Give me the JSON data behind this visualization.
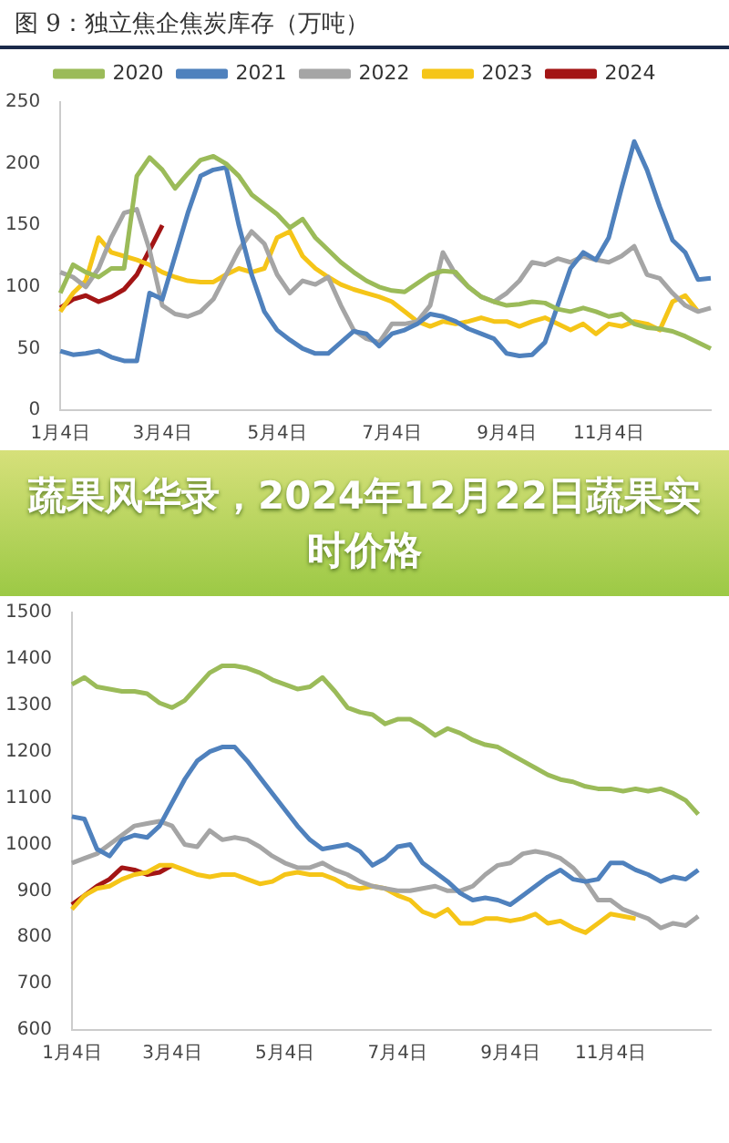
{
  "chart_data": [
    {
      "type": "line",
      "title": "图 9：独立焦企焦炭库存（万吨）",
      "categories": [
        "1月4日",
        null,
        null,
        null,
        null,
        null,
        null,
        null,
        "3月4日",
        null,
        null,
        null,
        null,
        null,
        null,
        null,
        null,
        "5月4日",
        null,
        null,
        null,
        null,
        null,
        null,
        null,
        null,
        "7月4日",
        null,
        null,
        null,
        null,
        null,
        null,
        null,
        null,
        "9月4日",
        null,
        null,
        null,
        null,
        null,
        null,
        null,
        "11月4日",
        null,
        null,
        null,
        null,
        null,
        null,
        null,
        null
      ],
      "series": [
        {
          "name": "2020",
          "color": "#9bbb59",
          "values": [
            95,
            118,
            112,
            108,
            115,
            115,
            190,
            205,
            195,
            180,
            192,
            203,
            206,
            200,
            190,
            175,
            167,
            159,
            148,
            155,
            140,
            130,
            120,
            112,
            105,
            100,
            97,
            96,
            103,
            110,
            113,
            112,
            100,
            92,
            88,
            85,
            86,
            88,
            87,
            82,
            80,
            83,
            80,
            76,
            78,
            70,
            67,
            66,
            64,
            60,
            55,
            50
          ]
        },
        {
          "name": "2021",
          "color": "#4f81bd",
          "values": [
            48,
            45,
            46,
            48,
            43,
            40,
            40,
            95,
            90,
            125,
            160,
            190,
            195,
            197,
            150,
            110,
            80,
            65,
            57,
            50,
            46,
            46,
            55,
            64,
            62,
            52,
            62,
            65,
            70,
            78,
            76,
            72,
            66,
            62,
            58,
            46,
            44,
            45,
            55,
            85,
            115,
            128,
            122,
            140,
            180,
            218,
            195,
            165,
            138,
            128,
            106,
            107
          ]
        },
        {
          "name": "2022",
          "color": "#a5a5a5",
          "values": [
            112,
            108,
            100,
            115,
            140,
            160,
            163,
            130,
            85,
            78,
            76,
            80,
            90,
            110,
            130,
            145,
            135,
            110,
            95,
            105,
            102,
            108,
            85,
            65,
            58,
            55,
            70,
            70,
            72,
            85,
            128,
            110,
            100,
            92,
            88,
            95,
            105,
            120,
            118,
            123,
            120,
            125,
            122,
            120,
            125,
            133,
            110,
            107,
            95,
            85,
            80,
            83
          ]
        },
        {
          "name": "2023",
          "color": "#f5c518",
          "values": [
            80,
            95,
            105,
            140,
            128,
            125,
            122,
            118,
            112,
            108,
            105,
            104,
            104,
            110,
            115,
            112,
            115,
            140,
            145,
            125,
            115,
            108,
            102,
            98,
            95,
            92,
            88,
            80,
            72,
            68,
            72,
            70,
            72,
            75,
            72,
            72,
            68,
            72,
            75,
            70,
            65,
            70,
            62,
            70,
            68,
            72,
            70,
            65,
            88,
            93,
            80,
            null
          ]
        },
        {
          "name": "2024",
          "color": "#a31515",
          "values": [
            83,
            90,
            93,
            88,
            92,
            98,
            110,
            130,
            150,
            null,
            null,
            null,
            null,
            null,
            null,
            null,
            null,
            null,
            null,
            null,
            null,
            null,
            null,
            null,
            null,
            null,
            null,
            null,
            null,
            null,
            null,
            null,
            null,
            null,
            null,
            null,
            null,
            null,
            null,
            null,
            null,
            null,
            null,
            null,
            null,
            null,
            null,
            null,
            null,
            null,
            null,
            null
          ]
        }
      ],
      "ylim": [
        0,
        250
      ],
      "yticks": [
        0,
        50,
        100,
        150,
        200,
        250
      ],
      "legend": "top",
      "marker": "none"
    },
    {
      "type": "other",
      "title": "蔬果风华录，2024年12月22日蔬果实时价格"
    },
    {
      "type": "line",
      "categories": [
        "1月4日",
        null,
        null,
        null,
        null,
        null,
        null,
        null,
        "3月4日",
        null,
        null,
        null,
        null,
        null,
        null,
        null,
        null,
        "5月4日",
        null,
        null,
        null,
        null,
        null,
        null,
        null,
        null,
        "7月4日",
        null,
        null,
        null,
        null,
        null,
        null,
        null,
        null,
        "9月4日",
        null,
        null,
        null,
        null,
        null,
        null,
        null,
        "11月4日",
        null,
        null,
        null,
        null,
        null,
        null,
        null,
        null
      ],
      "series": [
        {
          "color": "#9bbb59",
          "values": [
            1345,
            1360,
            1340,
            1335,
            1330,
            1330,
            1325,
            1305,
            1295,
            1310,
            1340,
            1370,
            1385,
            1385,
            1380,
            1370,
            1355,
            1345,
            1335,
            1340,
            1360,
            1330,
            1295,
            1285,
            1280,
            1260,
            1270,
            1270,
            1255,
            1235,
            1250,
            1240,
            1225,
            1215,
            1210,
            1195,
            1180,
            1165,
            1150,
            1140,
            1135,
            1125,
            1120,
            1120,
            1115,
            1120,
            1115,
            1120,
            1110,
            1095,
            1065,
            null
          ]
        },
        {
          "color": "#4f81bd",
          "values": [
            1060,
            1055,
            990,
            975,
            1010,
            1020,
            1015,
            1040,
            1090,
            1140,
            1180,
            1200,
            1210,
            1210,
            1180,
            1145,
            1110,
            1075,
            1040,
            1010,
            990,
            995,
            1000,
            985,
            955,
            970,
            995,
            1000,
            960,
            940,
            920,
            895,
            880,
            885,
            880,
            870,
            890,
            910,
            930,
            945,
            925,
            920,
            925,
            960,
            960,
            945,
            935,
            920,
            930,
            925,
            945,
            null
          ]
        },
        {
          "color": "#a5a5a5",
          "values": [
            960,
            970,
            980,
            1000,
            1020,
            1040,
            1045,
            1050,
            1040,
            1000,
            995,
            1030,
            1010,
            1015,
            1010,
            995,
            975,
            960,
            950,
            950,
            960,
            945,
            935,
            920,
            910,
            905,
            900,
            900,
            905,
            910,
            900,
            900,
            910,
            935,
            955,
            960,
            980,
            985,
            980,
            970,
            950,
            920,
            880,
            880,
            860,
            850,
            840,
            820,
            830,
            825,
            845,
            null
          ]
        },
        {
          "color": "#f5c518",
          "values": [
            860,
            890,
            905,
            910,
            925,
            935,
            940,
            955,
            955,
            945,
            935,
            930,
            935,
            935,
            925,
            915,
            920,
            935,
            940,
            935,
            935,
            925,
            910,
            905,
            910,
            905,
            890,
            880,
            855,
            845,
            860,
            830,
            830,
            840,
            840,
            835,
            840,
            850,
            830,
            835,
            820,
            810,
            830,
            850,
            845,
            840,
            null,
            null,
            null,
            null,
            null,
            null
          ]
        },
        {
          "color": "#a31515",
          "values": [
            870,
            890,
            910,
            925,
            950,
            945,
            935,
            940,
            955,
            null,
            null,
            null,
            null,
            null,
            null,
            null,
            null,
            null,
            null,
            null,
            null,
            null,
            null,
            null,
            null,
            null,
            null,
            null,
            null,
            null,
            null,
            null,
            null,
            null,
            null,
            null,
            null,
            null,
            null,
            null,
            null,
            null,
            null,
            null,
            null,
            null,
            null,
            null,
            null,
            null,
            null,
            null
          ]
        }
      ],
      "ylim": [
        600,
        1500
      ],
      "yticks": [
        600,
        700,
        800,
        900,
        1000,
        1100,
        1200,
        1300,
        1400,
        1500
      ],
      "marker": "none"
    }
  ]
}
